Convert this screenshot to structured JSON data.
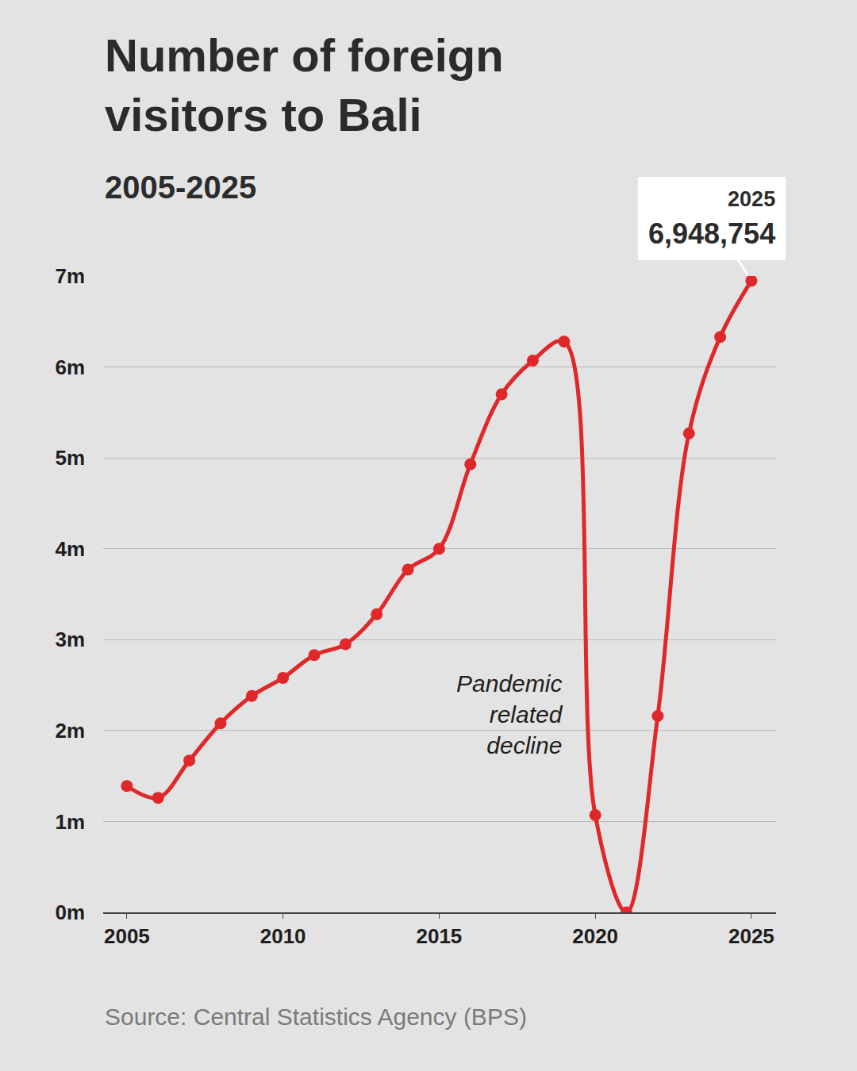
{
  "chart_data": {
    "type": "line",
    "title": "Number of foreign visitors to Bali",
    "subtitle": "2005-2025",
    "source": "Source: Central Statistics Agency (BPS)",
    "x": [
      2005,
      2006,
      2007,
      2008,
      2009,
      2010,
      2011,
      2012,
      2013,
      2014,
      2015,
      2016,
      2017,
      2018,
      2019,
      2020,
      2021,
      2022,
      2023,
      2024,
      2025
    ],
    "values": [
      1.39,
      1.26,
      1.67,
      2.08,
      2.38,
      2.58,
      2.83,
      2.95,
      3.28,
      3.77,
      4.0,
      4.93,
      5.7,
      6.07,
      6.28,
      1.07,
      0.0,
      2.16,
      5.27,
      6.33,
      6.948754
    ],
    "color": "#e0282a",
    "marker": "circle",
    "line_style": "solid",
    "xlim": [
      2004.24,
      2025.79
    ],
    "xticks": [
      2005,
      2010,
      2015,
      2020,
      2025
    ],
    "ylim": [
      0,
      7
    ],
    "yticks": [
      {
        "value": 0,
        "label": "0m"
      },
      {
        "value": 1,
        "label": "1m"
      },
      {
        "value": 2,
        "label": "2m"
      },
      {
        "value": 3,
        "label": "3m"
      },
      {
        "value": 4,
        "label": "4m"
      },
      {
        "value": 5,
        "label": "5m"
      },
      {
        "value": 6,
        "label": "6m"
      },
      {
        "value": 7,
        "label": "7m"
      }
    ],
    "grid": true,
    "annotations": [
      {
        "text": "Pandemic related decline",
        "x": 2019.03,
        "y": 2.18
      }
    ],
    "callout": {
      "x": 2025,
      "label": "2025",
      "value_label": "6,948,754"
    }
  }
}
